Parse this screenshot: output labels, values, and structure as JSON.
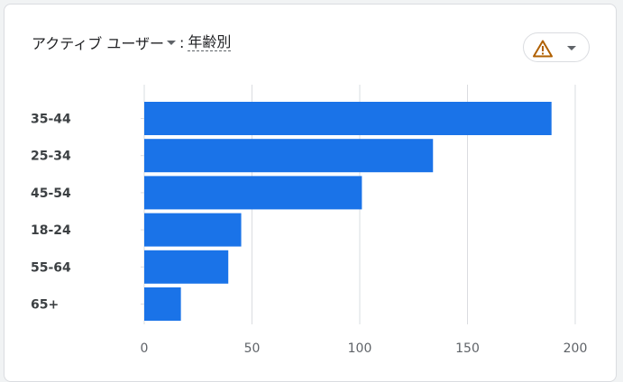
{
  "header": {
    "metric": "アクティブ ユーザー",
    "separator": ":",
    "dimension": "年齢別",
    "warning_icon": "warning-triangle-icon"
  },
  "colors": {
    "bar": "#1a73e8",
    "grid": "#dadce0",
    "warning": "#b06000"
  },
  "chart_data": {
    "type": "bar",
    "orientation": "horizontal",
    "categories": [
      "35-44",
      "25-34",
      "45-54",
      "18-24",
      "55-64",
      "65+"
    ],
    "values": [
      189,
      134,
      101,
      45,
      39,
      17
    ],
    "xlim": [
      0,
      200
    ],
    "xticks": [
      "0",
      "50",
      "100",
      "150",
      "200"
    ],
    "grid": true,
    "title": "",
    "xlabel": "",
    "ylabel": ""
  }
}
